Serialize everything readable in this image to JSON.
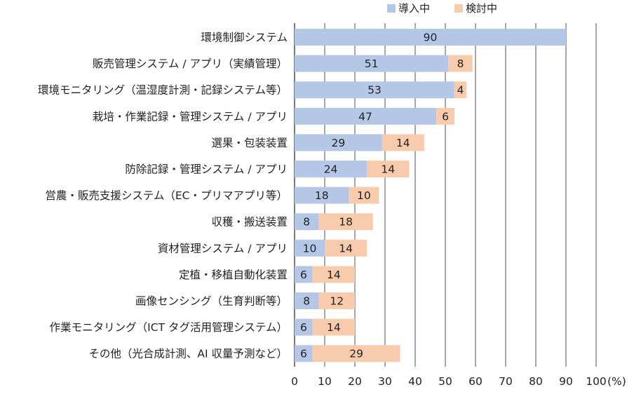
{
  "chart_data": {
    "type": "bar",
    "orientation": "horizontal",
    "stacked": true,
    "legend_position": "top-right",
    "grid": true,
    "xlim": [
      0,
      100
    ],
    "x_unit": "(%)",
    "x_ticks": [
      "0",
      "10",
      "20",
      "30",
      "40",
      "50",
      "60",
      "70",
      "80",
      "90",
      "100"
    ],
    "categories": [
      "環境制御システム",
      "販売管理システム / アプリ（実績管理）",
      "環境モニタリング（温湿度計測・記録システム等）",
      "栽培・作業記録・管理システム / アプリ",
      "選果・包装装置",
      "防除記録・管理システム / アプリ",
      "営農・販売支援システム（EC・プリマアプリ等）",
      "収穫・搬送装置",
      "資材管理システム / アプリ",
      "定植・移植自動化装置",
      "画像センシング（生育判断等）",
      "作業モニタリング（ICT タグ活用管理システム）",
      "その他（光合成計測、AI 収量予測など）"
    ],
    "series": [
      {
        "name": "導入中",
        "color": "#b4c7e7",
        "values": [
          90,
          51,
          53,
          47,
          29,
          24,
          18,
          8,
          10,
          6,
          8,
          6,
          6
        ]
      },
      {
        "name": "検討中",
        "color": "#f8cbad",
        "values": [
          0,
          8,
          4,
          6,
          14,
          14,
          10,
          18,
          14,
          14,
          12,
          14,
          29
        ]
      }
    ]
  }
}
